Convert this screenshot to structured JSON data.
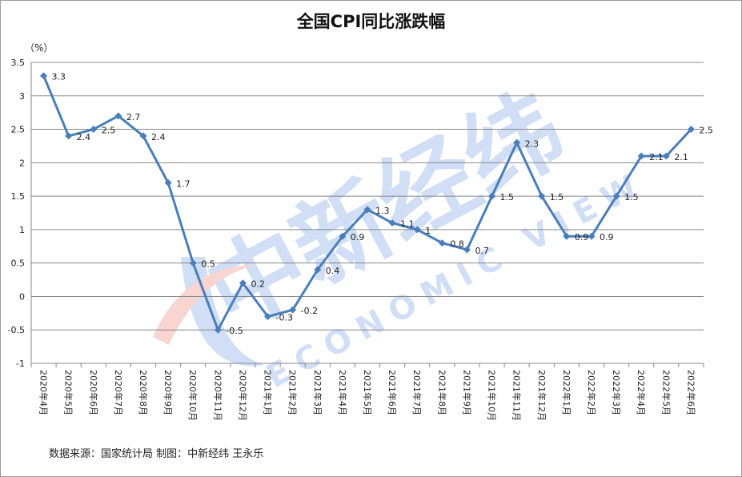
{
  "title": "全国CPI同比涨跌幅",
  "unit": "（%）",
  "source": "数据来源：国家统计局 制图：中新经纬 王永乐",
  "watermark": {
    "brand_cn": "中新经纬",
    "brand_en": "ECONOMIC VIEW"
  },
  "colors": {
    "series": "#4a7ebb",
    "grid": "#888888"
  },
  "chart_data": {
    "type": "line",
    "title": "全国CPI同比涨跌幅",
    "ylabel": "（%）",
    "xlabel": "",
    "ylim": [
      -1,
      3.5
    ],
    "yticks": [
      -1,
      -0.5,
      0,
      0.5,
      1,
      1.5,
      2,
      2.5,
      3,
      3.5
    ],
    "ytick_labels": [
      "-1",
      "-0.5",
      "0",
      "0.5",
      "1",
      "1.5",
      "2",
      "2.5",
      "3",
      "3.5"
    ],
    "grid": true,
    "legend": "none",
    "categories": [
      "2020年4月",
      "2020年5月",
      "2020年6月",
      "2020年7月",
      "2020年8月",
      "2020年9月",
      "2020年10月",
      "2020年11月",
      "2020年12月",
      "2021年1月",
      "2021年2月",
      "2021年3月",
      "2021年4月",
      "2021年5月",
      "2021年6月",
      "2021年7月",
      "2021年8月",
      "2021年9月",
      "2021年10月",
      "2021年11月",
      "2021年12月",
      "2022年1月",
      "2022年2月",
      "2022年3月",
      "2022年4月",
      "2022年5月",
      "2022年6月"
    ],
    "values": [
      3.3,
      2.4,
      2.5,
      2.7,
      2.4,
      1.7,
      0.5,
      -0.5,
      0.2,
      -0.3,
      -0.2,
      0.4,
      0.9,
      1.3,
      1.1,
      1,
      0.8,
      0.7,
      1.5,
      2.3,
      1.5,
      0.9,
      0.9,
      1.5,
      2.1,
      2.1,
      2.5
    ],
    "value_labels": [
      "3.3",
      "2.4",
      "2.5",
      "2.7",
      "2.4",
      "1.7",
      "0.5",
      "-0.5",
      "0.2",
      "-0.3",
      "-0.2",
      "0.4",
      "0.9",
      "1.3",
      "1.1",
      "1",
      "0.8",
      "0.7",
      "1.5",
      "2.3",
      "1.5",
      "0.9",
      "0.9",
      "1.5",
      "2.1",
      "2.1",
      "2.5"
    ]
  }
}
